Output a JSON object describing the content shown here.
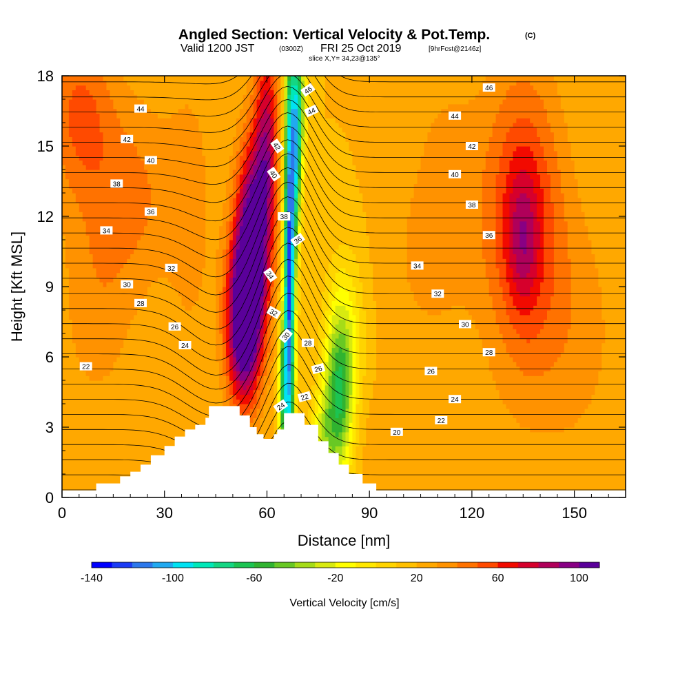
{
  "chart_data": {
    "type": "heatmap",
    "title": "Angled Section: Vertical Velocity & Pot.Temp.",
    "title_units": "(C)",
    "subtitle": {
      "valid_prefix": "Valid 1200 JST",
      "utc": "(0300Z)",
      "date": "FRI 25 Oct 2019",
      "forecast": "[9hrFcst@2146z]",
      "slice": "slice X,Y= 34,23@135°"
    },
    "xlabel": "Distance [nm]",
    "ylabel": "Height [Kft MSL]",
    "xlim": [
      0,
      165
    ],
    "ylim": [
      0,
      18
    ],
    "x_ticks": [
      "0",
      "30",
      "60",
      "90",
      "120",
      "150"
    ],
    "y_ticks": [
      "0",
      "3",
      "6",
      "9",
      "12",
      "15",
      "18"
    ],
    "colorbar": {
      "label": "Vertical Velocity [cm/s]",
      "min": -140,
      "max": 110,
      "step": 10,
      "tick_labels": [
        "-140",
        "-100",
        "-60",
        "-20",
        "20",
        "60",
        "100"
      ],
      "colors": [
        "#0000ff",
        "#1c3cf5",
        "#2c78ec",
        "#21a9f0",
        "#00e2f2",
        "#00e8b8",
        "#14d683",
        "#1cc452",
        "#30b330",
        "#68c824",
        "#a5dc18",
        "#d8ea10",
        "#ffff00",
        "#ffe800",
        "#ffd400",
        "#ffc000",
        "#ffa800",
        "#ff9200",
        "#ff7200",
        "#ff4a00",
        "#f20a00",
        "#d6002c",
        "#b0005a",
        "#880084",
        "#5a009a"
      ]
    },
    "terrain_kft": [
      [
        0,
        0.3
      ],
      [
        10,
        0.3
      ],
      [
        10,
        0.6
      ],
      [
        17,
        0.6
      ],
      [
        17,
        0.9
      ],
      [
        20,
        0.9
      ],
      [
        20,
        1.1
      ],
      [
        23,
        1.1
      ],
      [
        23,
        1.4
      ],
      [
        26,
        1.4
      ],
      [
        26,
        1.8
      ],
      [
        30,
        1.8
      ],
      [
        30,
        2.2
      ],
      [
        33,
        2.2
      ],
      [
        33,
        2.6
      ],
      [
        36,
        2.6
      ],
      [
        36,
        2.9
      ],
      [
        39,
        2.9
      ],
      [
        39,
        3.1
      ],
      [
        42,
        3.1
      ],
      [
        42,
        3.4
      ],
      [
        43,
        3.4
      ],
      [
        43,
        3.9
      ],
      [
        52,
        3.9
      ],
      [
        52,
        3.5
      ],
      [
        55,
        3.5
      ],
      [
        55,
        3.0
      ],
      [
        57,
        3.0
      ],
      [
        57,
        2.7
      ],
      [
        59,
        2.7
      ],
      [
        59,
        2.5
      ],
      [
        62,
        2.5
      ],
      [
        62,
        2.7
      ],
      [
        63,
        2.7
      ],
      [
        63,
        2.9
      ],
      [
        65,
        2.9
      ],
      [
        65,
        3.6
      ],
      [
        71,
        3.6
      ],
      [
        71,
        3.1
      ],
      [
        75,
        3.1
      ],
      [
        75,
        2.4
      ],
      [
        78,
        2.4
      ],
      [
        78,
        1.9
      ],
      [
        81,
        1.9
      ],
      [
        81,
        1.4
      ],
      [
        84,
        1.4
      ],
      [
        84,
        1.0
      ],
      [
        88,
        1.0
      ],
      [
        88,
        0.6
      ],
      [
        92,
        0.6
      ],
      [
        92,
        0.3
      ],
      [
        165,
        0.3
      ]
    ],
    "vertical_velocity_features": [
      {
        "x": 5,
        "z": 16.5,
        "sx": 7,
        "sz": 2.5,
        "w": 30
      },
      {
        "x": 20,
        "z": 13,
        "sx": 10,
        "sz": 3,
        "w": 22
      },
      {
        "x": 10,
        "z": 8,
        "sx": 8,
        "sz": 3.5,
        "w": 14
      },
      {
        "x": 38,
        "z": 12,
        "sx": 5,
        "sz": 5,
        "w": 12
      },
      {
        "x": 53,
        "z": 7.5,
        "sx": 3.5,
        "sz": 2.5,
        "w": 100
      },
      {
        "x": 56,
        "z": 11,
        "sx": 3.5,
        "sz": 3,
        "w": 90
      },
      {
        "x": 60,
        "z": 15.5,
        "sx": 2.5,
        "sz": 3,
        "w": 55
      },
      {
        "x": 66.5,
        "z": 9,
        "sx": 1.2,
        "sz": 7,
        "w": -140
      },
      {
        "x": 68.5,
        "z": 15,
        "sx": 1.2,
        "sz": 3,
        "w": -90
      },
      {
        "x": 64.5,
        "z": 4.5,
        "sx": 1.0,
        "sz": 2,
        "w": -60
      },
      {
        "x": 70,
        "z": 17,
        "sx": 1.5,
        "sz": 2,
        "w": -40
      },
      {
        "x": 81,
        "z": 4,
        "sx": 3,
        "sz": 2.5,
        "w": -70
      },
      {
        "x": 83,
        "z": 7,
        "sx": 4,
        "sz": 2.5,
        "w": -30
      },
      {
        "x": 76,
        "z": 2.5,
        "sx": 2.5,
        "sz": 1.5,
        "w": -35
      },
      {
        "x": 108,
        "z": 10,
        "sx": 10,
        "sz": 3,
        "w": 12
      },
      {
        "x": 113,
        "z": 15,
        "sx": 8,
        "sz": 3,
        "w": 10
      },
      {
        "x": 135,
        "z": 12,
        "sx": 8,
        "sz": 4.5,
        "w": 45
      },
      {
        "x": 135,
        "z": 11,
        "sx": 3,
        "sz": 2,
        "w": 25
      },
      {
        "x": 150,
        "z": 7,
        "sx": 10,
        "sz": 4,
        "w": 14
      },
      {
        "x": 105,
        "z": 2,
        "sx": 15,
        "sz": 2,
        "w": 8
      }
    ],
    "theta_field": {
      "base_c": 18.5,
      "lapse_c_per_kft": 1.55,
      "step_c": 1,
      "levels_min": 16,
      "levels_max": 47,
      "anomalies": [
        {
          "x": 66,
          "z": 12,
          "sx": 7,
          "sz": 10,
          "d": -5.5
        },
        {
          "x": 46,
          "z": 6,
          "sx": 9,
          "sz": 5,
          "d": 2.5
        }
      ]
    },
    "contour_labels": [
      {
        "text": "46",
        "x": 72,
        "z": 17.4,
        "rot": -35
      },
      {
        "text": "46",
        "x": 125,
        "z": 17.5,
        "rot": 0
      },
      {
        "text": "44",
        "x": 23,
        "z": 16.6,
        "rot": 0
      },
      {
        "text": "44",
        "x": 73,
        "z": 16.5,
        "rot": -25
      },
      {
        "text": "44",
        "x": 115,
        "z": 16.3,
        "rot": 0
      },
      {
        "text": "42",
        "x": 19,
        "z": 15.3,
        "rot": 0
      },
      {
        "text": "42",
        "x": 63,
        "z": 15,
        "rot": 55
      },
      {
        "text": "42",
        "x": 120,
        "z": 15,
        "rot": 0
      },
      {
        "text": "40",
        "x": 26,
        "z": 14.4,
        "rot": 0
      },
      {
        "text": "40",
        "x": 62,
        "z": 13.8,
        "rot": 55
      },
      {
        "text": "40",
        "x": 115,
        "z": 13.8,
        "rot": 0
      },
      {
        "text": "38",
        "x": 16,
        "z": 13.4,
        "rot": 0
      },
      {
        "text": "38",
        "x": 65,
        "z": 12,
        "rot": 0
      },
      {
        "text": "38",
        "x": 120,
        "z": 12.5,
        "rot": 0
      },
      {
        "text": "36",
        "x": 26,
        "z": 12.2,
        "rot": 0
      },
      {
        "text": "36",
        "x": 69,
        "z": 11,
        "rot": -35
      },
      {
        "text": "36",
        "x": 125,
        "z": 11.2,
        "rot": 0
      },
      {
        "text": "34",
        "x": 13,
        "z": 11.4,
        "rot": 0
      },
      {
        "text": "34",
        "x": 61,
        "z": 9.5,
        "rot": 55
      },
      {
        "text": "34",
        "x": 104,
        "z": 9.9,
        "rot": 0
      },
      {
        "text": "32",
        "x": 32,
        "z": 9.8,
        "rot": 0
      },
      {
        "text": "32",
        "x": 62,
        "z": 7.9,
        "rot": 30
      },
      {
        "text": "32",
        "x": 110,
        "z": 8.7,
        "rot": 0
      },
      {
        "text": "30",
        "x": 19,
        "z": 9.1,
        "rot": 0
      },
      {
        "text": "30",
        "x": 65.5,
        "z": 6.9,
        "rot": -50
      },
      {
        "text": "30",
        "x": 118,
        "z": 7.4,
        "rot": 0
      },
      {
        "text": "28",
        "x": 23,
        "z": 8.3,
        "rot": 0
      },
      {
        "text": "28",
        "x": 72,
        "z": 6.6,
        "rot": 0
      },
      {
        "text": "28",
        "x": 125,
        "z": 6.2,
        "rot": 0
      },
      {
        "text": "26",
        "x": 33,
        "z": 7.3,
        "rot": 0
      },
      {
        "text": "26",
        "x": 75,
        "z": 5.5,
        "rot": -15
      },
      {
        "text": "26",
        "x": 108,
        "z": 5.4,
        "rot": 0
      },
      {
        "text": "24",
        "x": 36,
        "z": 6.5,
        "rot": 0
      },
      {
        "text": "24",
        "x": 64,
        "z": 3.9,
        "rot": -35
      },
      {
        "text": "24",
        "x": 115,
        "z": 4.2,
        "rot": 0
      },
      {
        "text": "22",
        "x": 7,
        "z": 5.6,
        "rot": 0
      },
      {
        "text": "22",
        "x": 71,
        "z": 4.3,
        "rot": -15
      },
      {
        "text": "22",
        "x": 111,
        "z": 3.3,
        "rot": 0
      },
      {
        "text": "20",
        "x": 98,
        "z": 2.8,
        "rot": 0
      }
    ]
  }
}
